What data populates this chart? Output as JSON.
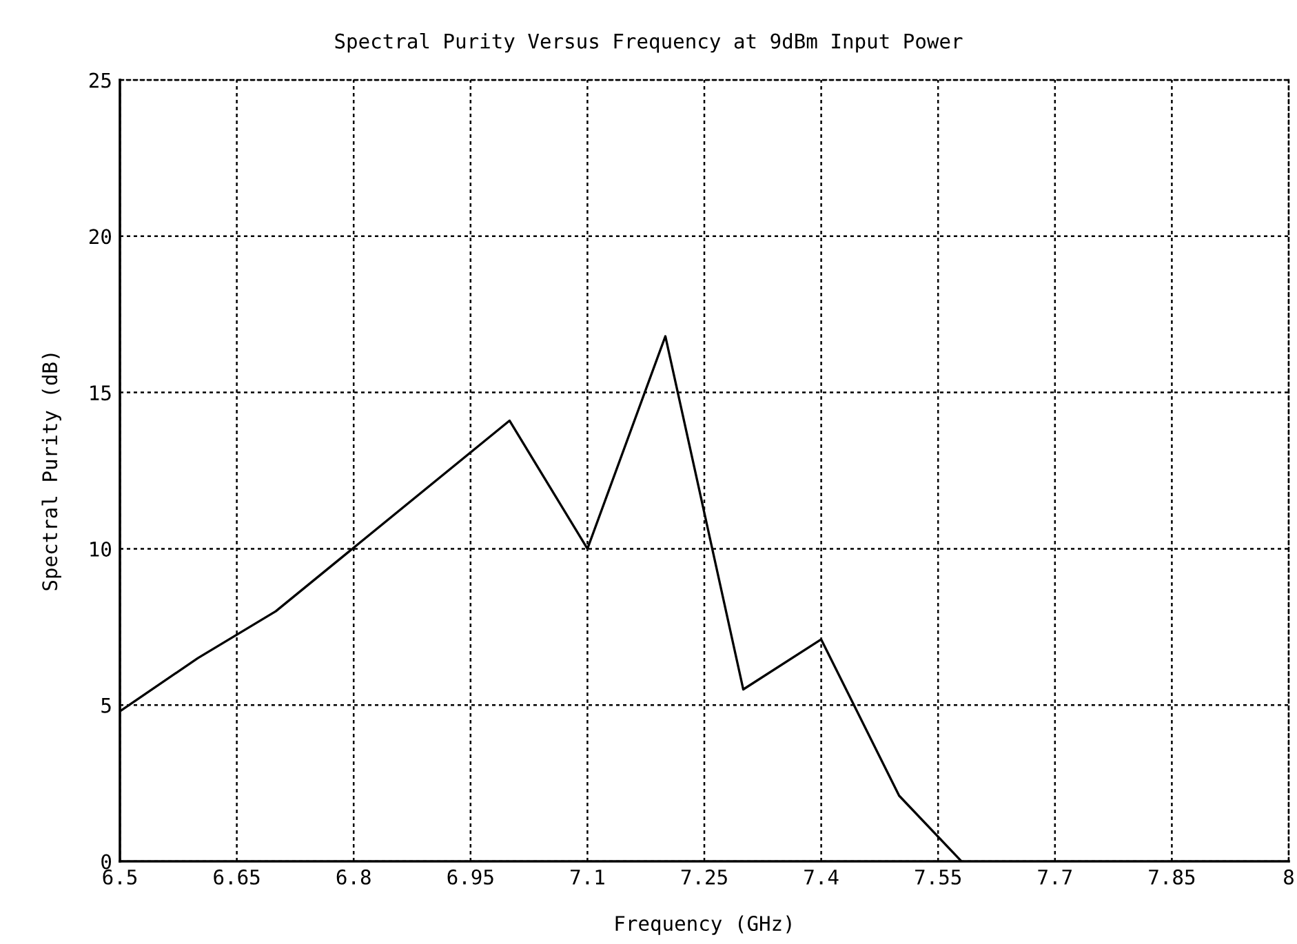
{
  "chart_data": {
    "type": "line",
    "title": "Spectral Purity Versus Frequency at 9dBm Input Power",
    "xlabel": "Frequency (GHz)",
    "ylabel": "Spectral Purity (dB)",
    "x": [
      6.5,
      6.6,
      6.7,
      7.0,
      7.1,
      7.2,
      7.3,
      7.4,
      7.5,
      7.58
    ],
    "series": [
      {
        "color": "#000000",
        "values": [
          4.8,
          6.5,
          8.0,
          14.1,
          10.0,
          16.8,
          5.5,
          7.1,
          2.1,
          0
        ]
      }
    ],
    "xlim": [
      6.5,
      8
    ],
    "ylim": [
      0,
      25
    ],
    "xticks": [
      6.5,
      6.65,
      6.8,
      6.95,
      7.1,
      7.25,
      7.4,
      7.55,
      7.7,
      7.85,
      8
    ],
    "yticks": [
      0,
      5,
      10,
      15,
      20,
      25
    ],
    "grid": true,
    "marker": "none",
    "line_style": "solid"
  }
}
